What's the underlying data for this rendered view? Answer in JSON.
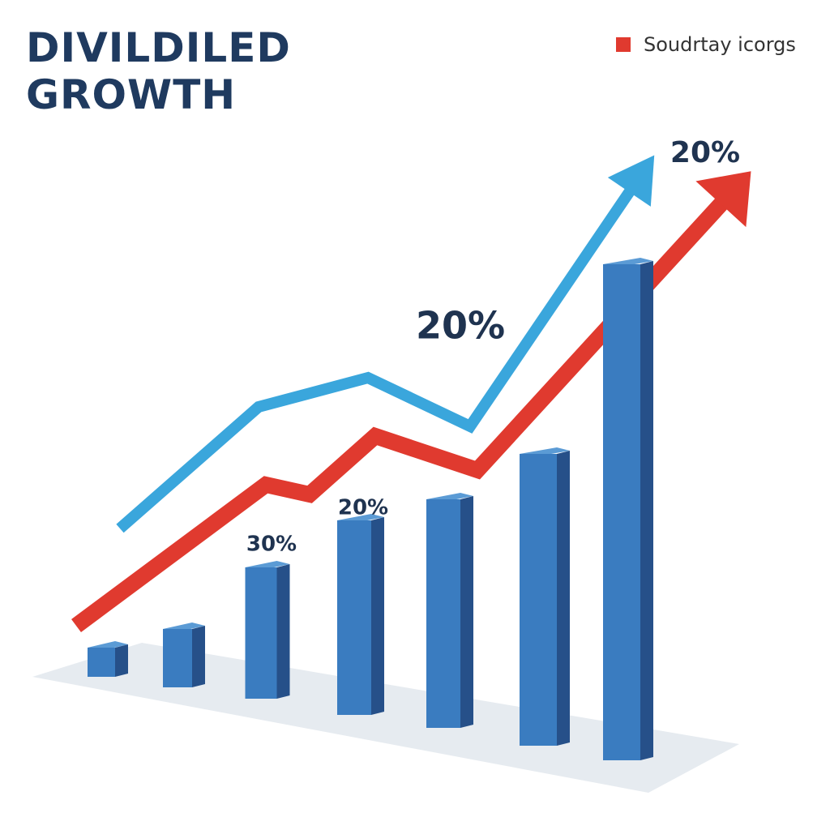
{
  "chart_data": {
    "type": "bar",
    "title": "DIVILDILED GROWTH",
    "values": [
      6,
      12,
      27,
      40,
      47,
      60,
      102
    ],
    "color": "#3a7cc0",
    "ylim": [
      0,
      130
    ],
    "xlim": [
      0,
      100
    ],
    "series": [
      {
        "color": "#3aa6dc",
        "x": [
          12,
          31,
          46,
          60,
          84
        ],
        "values": [
          48,
          73,
          79,
          69,
          122
        ]
      },
      {
        "name": "Soudrtay icorgs",
        "color": "#e03a2f",
        "x": [
          6,
          32,
          38,
          47,
          61,
          97
        ],
        "values": [
          28,
          57,
          55,
          67,
          60,
          119
        ]
      }
    ],
    "annotations": [
      "30%",
      "20%",
      "20%",
      "20%"
    ]
  }
}
